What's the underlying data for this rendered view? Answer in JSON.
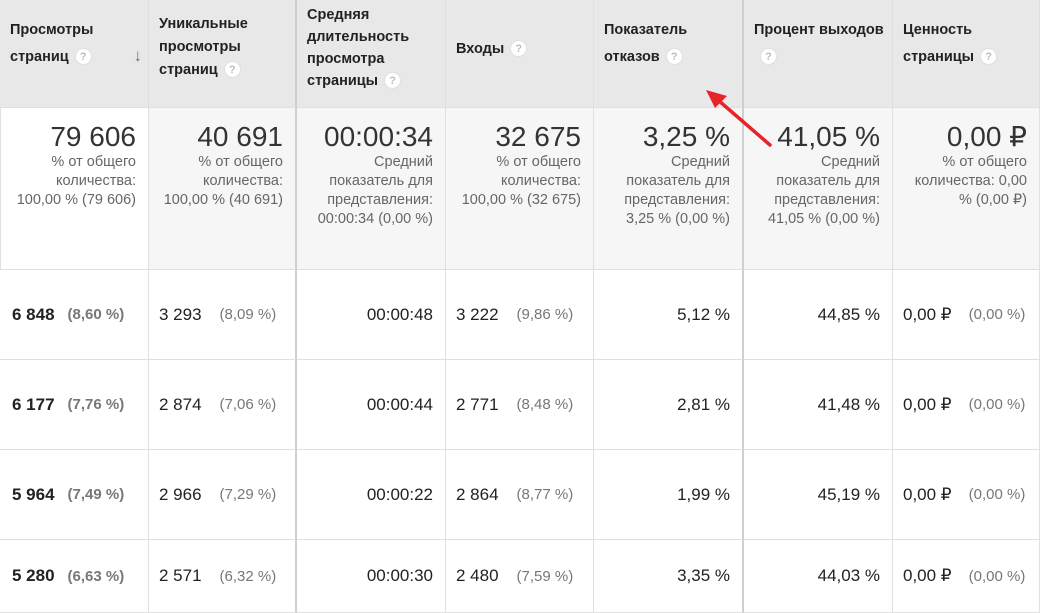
{
  "headers": [
    {
      "label": "Просмотры страниц",
      "help": "?",
      "sorted": true
    },
    {
      "label": "Уникальные просмотры страниц",
      "help": "?"
    },
    {
      "label": "Средняя длительность просмотра страницы",
      "help": "?"
    },
    {
      "label": "Входы",
      "help": "?"
    },
    {
      "label": "Показатель отказов",
      "help": "?"
    },
    {
      "label": "Процент выходов",
      "help": "?"
    },
    {
      "label": "Ценность страницы",
      "help": "?"
    }
  ],
  "summary": [
    {
      "big": "79 606",
      "sub": "% от общего количества: 100,00 % (79 606)"
    },
    {
      "big": "40 691",
      "sub": "% от общего количества: 100,00 % (40 691)"
    },
    {
      "big": "00:00:34",
      "sub": "Средний показатель для представления: 00:00:34 (0,00 %)"
    },
    {
      "big": "32 675",
      "sub": "% от общего количества: 100,00 % (32 675)"
    },
    {
      "big": "3,25 %",
      "sub": "Средний показатель для представления: 3,25 % (0,00 %)"
    },
    {
      "big": "41,05 %",
      "sub": "Средний показатель для представления: 41,05 % (0,00 %)"
    },
    {
      "big": "0,00 ₽",
      "sub": "% от общего количества: 0,00 % (0,00 ₽)"
    }
  ],
  "rows": [
    {
      "pageviews": "6 848",
      "pageviews_pct": "(8,60 %)",
      "unique": "3 293",
      "unique_pct": "(8,09 %)",
      "avg_time": "00:00:48",
      "entrances": "3 222",
      "entrances_pct": "(9,86 %)",
      "bounce": "5,12 %",
      "exit": "44,85 %",
      "value": "0,00 ₽",
      "value_pct": "(0,00 %)"
    },
    {
      "pageviews": "6 177",
      "pageviews_pct": "(7,76 %)",
      "unique": "2 874",
      "unique_pct": "(7,06 %)",
      "avg_time": "00:00:44",
      "entrances": "2 771",
      "entrances_pct": "(8,48 %)",
      "bounce": "2,81 %",
      "exit": "41,48 %",
      "value": "0,00 ₽",
      "value_pct": "(0,00 %)"
    },
    {
      "pageviews": "5 964",
      "pageviews_pct": "(7,49 %)",
      "unique": "2 966",
      "unique_pct": "(7,29 %)",
      "avg_time": "00:00:22",
      "entrances": "2 864",
      "entrances_pct": "(8,77 %)",
      "bounce": "1,99 %",
      "exit": "45,19 %",
      "value": "0,00 ₽",
      "value_pct": "(0,00 %)"
    },
    {
      "pageviews": "5 280",
      "pageviews_pct": "(6,63 %)",
      "unique": "2 571",
      "unique_pct": "(6,32 %)",
      "avg_time": "00:00:30",
      "entrances": "2 480",
      "entrances_pct": "(7,59 %)",
      "bounce": "3,35 %",
      "exit": "44,03 %",
      "value": "0,00 ₽",
      "value_pct": "(0,00 %)"
    }
  ],
  "colors": {
    "header_bg": "#e8e8e8",
    "summary_bg": "#f6f6f6",
    "arrow": "#e8232a"
  }
}
